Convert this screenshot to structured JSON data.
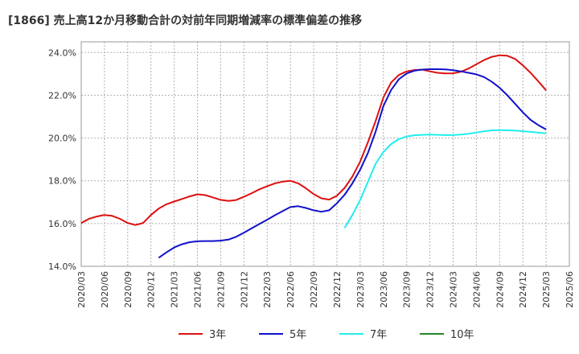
{
  "chart_data": {
    "type": "line",
    "title": "[1866]  売上高12か月移動合計の対前年同期増減率の標準偏差の推移",
    "xlabel": "",
    "ylabel": "",
    "ylim": [
      14.0,
      24.5
    ],
    "y_ticks": [
      "24.0%",
      "22.0%",
      "20.0%",
      "18.0%",
      "16.0%",
      "14.0%"
    ],
    "y_tick_values": [
      24.0,
      22.0,
      20.0,
      18.0,
      16.0,
      14.0
    ],
    "x_ticks": [
      "2020/03",
      "2020/06",
      "2020/09",
      "2020/12",
      "2021/03",
      "2021/06",
      "2021/09",
      "2021/12",
      "2022/03",
      "2022/06",
      "2022/09",
      "2022/12",
      "2023/03",
      "2023/06",
      "2023/09",
      "2023/12",
      "2024/03",
      "2024/06",
      "2024/09",
      "2024/12",
      "2025/03",
      "2025/06"
    ],
    "grid": true,
    "legend_position": "bottom",
    "series": [
      {
        "name": "3年",
        "color": "#dd1111",
        "points": [
          [
            "2020/03",
            16.02
          ],
          [
            "2020/04",
            16.22
          ],
          [
            "2020/05",
            16.33
          ],
          [
            "2020/06",
            16.4
          ],
          [
            "2020/07",
            16.36
          ],
          [
            "2020/08",
            16.22
          ],
          [
            "2020/09",
            16.03
          ],
          [
            "2020/10",
            15.93
          ],
          [
            "2020/11",
            16.03
          ],
          [
            "2020/12",
            16.4
          ],
          [
            "2021/01",
            16.7
          ],
          [
            "2021/02",
            16.9
          ],
          [
            "2021/03",
            17.03
          ],
          [
            "2021/04",
            17.15
          ],
          [
            "2021/05",
            17.27
          ],
          [
            "2021/06",
            17.37
          ],
          [
            "2021/07",
            17.33
          ],
          [
            "2021/08",
            17.22
          ],
          [
            "2021/09",
            17.11
          ],
          [
            "2021/10",
            17.06
          ],
          [
            "2021/11",
            17.1
          ],
          [
            "2021/12",
            17.25
          ],
          [
            "2022/01",
            17.42
          ],
          [
            "2022/02",
            17.6
          ],
          [
            "2022/03",
            17.75
          ],
          [
            "2022/04",
            17.88
          ],
          [
            "2022/05",
            17.96
          ],
          [
            "2022/06",
            18.0
          ],
          [
            "2022/07",
            17.88
          ],
          [
            "2022/08",
            17.65
          ],
          [
            "2022/09",
            17.38
          ],
          [
            "2022/10",
            17.18
          ],
          [
            "2022/11",
            17.12
          ],
          [
            "2022/12",
            17.3
          ],
          [
            "2023/01",
            17.67
          ],
          [
            "2023/02",
            18.2
          ],
          [
            "2023/03",
            18.9
          ],
          [
            "2023/04",
            19.8
          ],
          [
            "2023/05",
            20.8
          ],
          [
            "2023/06",
            21.9
          ],
          [
            "2023/07",
            22.6
          ],
          [
            "2023/08",
            22.95
          ],
          [
            "2023/09",
            23.12
          ],
          [
            "2023/10",
            23.18
          ],
          [
            "2023/11",
            23.2
          ],
          [
            "2023/12",
            23.12
          ],
          [
            "2024/01",
            23.05
          ],
          [
            "2024/02",
            23.02
          ],
          [
            "2024/03",
            23.03
          ],
          [
            "2024/04",
            23.1
          ],
          [
            "2024/05",
            23.25
          ],
          [
            "2024/06",
            23.45
          ],
          [
            "2024/07",
            23.65
          ],
          [
            "2024/08",
            23.8
          ],
          [
            "2024/09",
            23.87
          ],
          [
            "2024/10",
            23.85
          ],
          [
            "2024/11",
            23.7
          ],
          [
            "2024/12",
            23.4
          ],
          [
            "2025/01",
            23.05
          ],
          [
            "2025/02",
            22.65
          ],
          [
            "2025/03",
            22.23
          ]
        ]
      },
      {
        "name": "5年",
        "color": "#1111cc",
        "points": [
          [
            "2021/01",
            14.4
          ],
          [
            "2021/02",
            14.65
          ],
          [
            "2021/03",
            14.88
          ],
          [
            "2021/04",
            15.03
          ],
          [
            "2021/05",
            15.13
          ],
          [
            "2021/06",
            15.17
          ],
          [
            "2021/07",
            15.18
          ],
          [
            "2021/08",
            15.18
          ],
          [
            "2021/09",
            15.2
          ],
          [
            "2021/10",
            15.25
          ],
          [
            "2021/11",
            15.38
          ],
          [
            "2021/12",
            15.57
          ],
          [
            "2022/01",
            15.78
          ],
          [
            "2022/02",
            15.98
          ],
          [
            "2022/03",
            16.18
          ],
          [
            "2022/04",
            16.39
          ],
          [
            "2022/05",
            16.58
          ],
          [
            "2022/06",
            16.77
          ],
          [
            "2022/07",
            16.81
          ],
          [
            "2022/08",
            16.73
          ],
          [
            "2022/09",
            16.62
          ],
          [
            "2022/10",
            16.55
          ],
          [
            "2022/11",
            16.62
          ],
          [
            "2022/12",
            16.95
          ],
          [
            "2023/01",
            17.35
          ],
          [
            "2023/02",
            17.88
          ],
          [
            "2023/03",
            18.52
          ],
          [
            "2023/04",
            19.3
          ],
          [
            "2023/05",
            20.3
          ],
          [
            "2023/06",
            21.5
          ],
          [
            "2023/07",
            22.25
          ],
          [
            "2023/08",
            22.75
          ],
          [
            "2023/09",
            23.02
          ],
          [
            "2023/10",
            23.15
          ],
          [
            "2023/11",
            23.2
          ],
          [
            "2023/12",
            23.22
          ],
          [
            "2024/01",
            23.22
          ],
          [
            "2024/02",
            23.21
          ],
          [
            "2024/03",
            23.17
          ],
          [
            "2024/04",
            23.12
          ],
          [
            "2024/05",
            23.05
          ],
          [
            "2024/06",
            22.98
          ],
          [
            "2024/07",
            22.85
          ],
          [
            "2024/08",
            22.63
          ],
          [
            "2024/09",
            22.35
          ],
          [
            "2024/10",
            22.0
          ],
          [
            "2024/11",
            21.6
          ],
          [
            "2024/12",
            21.2
          ],
          [
            "2025/01",
            20.85
          ],
          [
            "2025/02",
            20.6
          ],
          [
            "2025/03",
            20.4
          ]
        ]
      },
      {
        "name": "7年",
        "color": "#22eeee",
        "points": [
          [
            "2023/01",
            15.8
          ],
          [
            "2023/02",
            16.4
          ],
          [
            "2023/03",
            17.1
          ],
          [
            "2023/04",
            17.95
          ],
          [
            "2023/05",
            18.8
          ],
          [
            "2023/06",
            19.35
          ],
          [
            "2023/07",
            19.72
          ],
          [
            "2023/08",
            19.95
          ],
          [
            "2023/09",
            20.07
          ],
          [
            "2023/10",
            20.13
          ],
          [
            "2023/11",
            20.15
          ],
          [
            "2023/12",
            20.16
          ],
          [
            "2024/01",
            20.15
          ],
          [
            "2024/02",
            20.14
          ],
          [
            "2024/03",
            20.14
          ],
          [
            "2024/04",
            20.16
          ],
          [
            "2024/05",
            20.2
          ],
          [
            "2024/06",
            20.26
          ],
          [
            "2024/07",
            20.32
          ],
          [
            "2024/08",
            20.36
          ],
          [
            "2024/09",
            20.37
          ],
          [
            "2024/10",
            20.36
          ],
          [
            "2024/11",
            20.35
          ],
          [
            "2024/12",
            20.32
          ],
          [
            "2025/01",
            20.29
          ],
          [
            "2025/02",
            20.25
          ],
          [
            "2025/03",
            20.22
          ]
        ]
      },
      {
        "name": "10年",
        "color": "#228822",
        "points": []
      }
    ]
  }
}
